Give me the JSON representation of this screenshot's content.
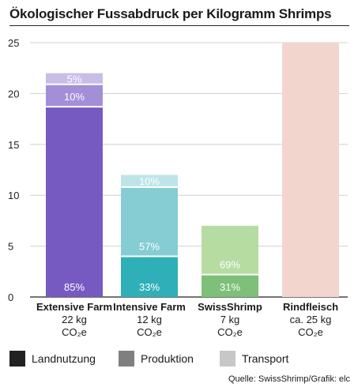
{
  "title": "Ökologischer Fussabdruck per Kilogramm Shrimps",
  "source": "Quelle: SwissShrimp/Grafik: elc",
  "categories": [
    {
      "name": "Extensive Farm",
      "value": "22 kg",
      "unit": "CO₂e"
    },
    {
      "name": "Intensive Farm",
      "value": "12 kg",
      "unit": "CO₂e"
    },
    {
      "name": "SwissShrimp",
      "value": "7 kg",
      "unit": "CO₂e"
    },
    {
      "name": "Rindfleisch",
      "value": "ca. 25 kg",
      "unit": "CO₂e"
    }
  ],
  "legend": [
    {
      "label": "Landnutzung",
      "color": "#222222"
    },
    {
      "label": "Produktion",
      "color": "#7f7f7f"
    },
    {
      "label": "Transport",
      "color": "#c7c7c7"
    }
  ],
  "chart_data": {
    "type": "bar",
    "stacked": true,
    "categories": [
      "Extensive Farm",
      "Intensive Farm",
      "SwissShrimp",
      "Rindfleisch"
    ],
    "ylim": [
      0,
      25
    ],
    "yticks": [
      0,
      5,
      10,
      15,
      20,
      25
    ],
    "grid": true,
    "series": [
      {
        "name": "Landnutzung",
        "values": [
          18.7,
          4.0,
          2.2,
          25
        ],
        "labels": [
          "85%",
          "33%",
          "31%",
          ""
        ],
        "colors": [
          "#7759c2",
          "#2fb0b8",
          "#7ebf79",
          "#f2d6cd"
        ]
      },
      {
        "name": "Produktion",
        "values": [
          2.2,
          6.8,
          4.8,
          0
        ],
        "labels": [
          "10%",
          "57%",
          "69%",
          ""
        ],
        "colors": [
          "#a38fd8",
          "#86ccd3",
          "#b6dca2",
          "#f2d6cd"
        ]
      },
      {
        "name": "Transport",
        "values": [
          1.1,
          1.2,
          0,
          0
        ],
        "labels": [
          "5%",
          "10%",
          "",
          ""
        ],
        "colors": [
          "#c9bde8",
          "#bfe4e8",
          "#d9edcf",
          "#f2d6cd"
        ]
      }
    ]
  }
}
